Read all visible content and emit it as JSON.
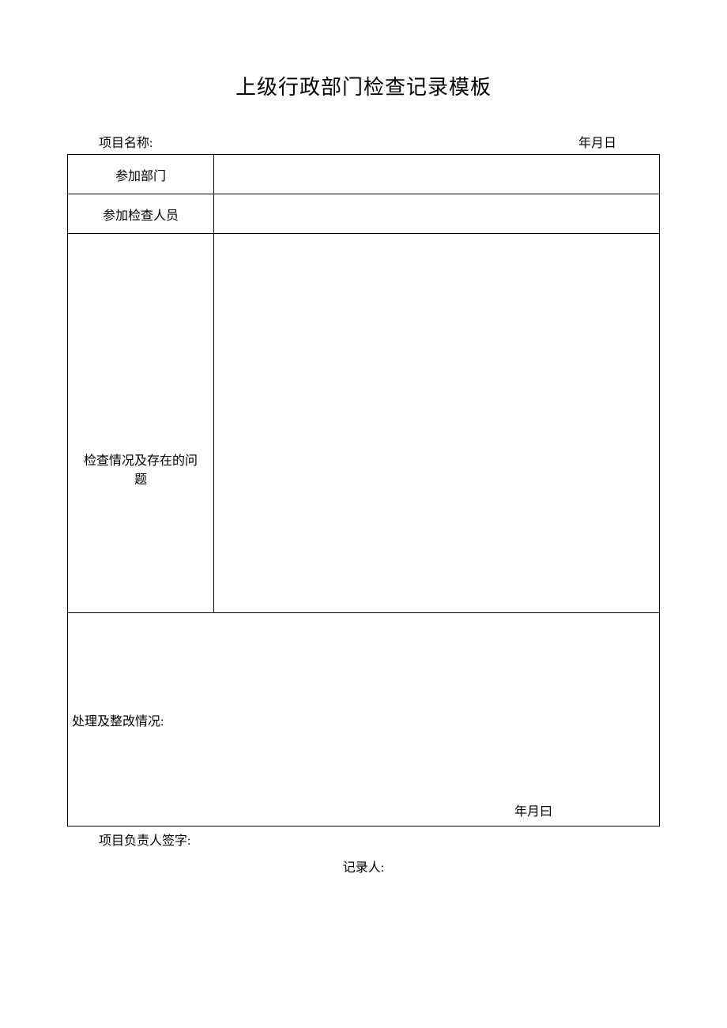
{
  "title": "上级行政部门检查记录模板",
  "header": {
    "projectLabel": "项目名称:",
    "dateLabel": "年月日"
  },
  "table": {
    "row1Label": "参加部门",
    "row2Label": "参加检查人员",
    "row3Label": "检查情况及存在的问题",
    "row4Label": "处理及整改情况:",
    "row4Date": "年月曰"
  },
  "footer": {
    "signatureLabel": "项目负责人签字:",
    "recorderLabel": "记录人:"
  },
  "styling": {
    "pageWidth": 920,
    "pageHeight": 1301,
    "backgroundColor": "#ffffff",
    "borderColor": "#000000",
    "textColor": "#000000",
    "titleFontSize": 26,
    "bodyFontSize": 16,
    "fontFamily": "SimSun"
  }
}
